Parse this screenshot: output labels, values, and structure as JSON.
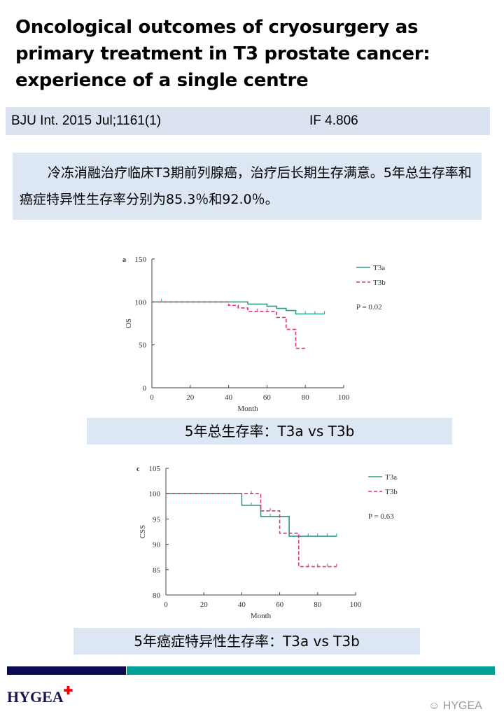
{
  "title": "Oncological outcomes of cryosurgery as primary treatment in T3 prostate cancer: experience of a single centre",
  "citation": {
    "journal": "BJU Int. 2015 Jul;1161(1)",
    "impact_factor": "IF 4.806"
  },
  "summary": "冷冻消融治疗临床T3期前列腺癌，治疗后长期生存满意。5年总生存率和癌症特异性生存率分别为85.3％和92.0％。",
  "captions": [
    "5年总生存率：T3a vs T3b",
    "5年癌症特异性生存率：T3a vs T3b"
  ],
  "colors": {
    "T3a": "#2a9d8a",
    "T3b": "#e0307a",
    "header_bar": "#dbe3f1",
    "footer_navy": "#0b0b4f",
    "footer_teal": "#00a096"
  },
  "chart_data": [
    {
      "type": "line",
      "panel_label": "a",
      "xlabel": "Month",
      "ylabel": "OS",
      "xlim": [
        0,
        100
      ],
      "ylim": [
        0,
        150
      ],
      "xticks": [
        0,
        20,
        40,
        60,
        80,
        100
      ],
      "yticks": [
        0,
        50,
        100,
        150
      ],
      "annotation": "P = 0.02",
      "legend_position": "top-right",
      "grid": false,
      "series": [
        {
          "name": "T3a",
          "style": "solid",
          "step_x": [
            0,
            50,
            60,
            65,
            70,
            75,
            90
          ],
          "step_y": [
            100,
            97.5,
            95,
            92.5,
            90,
            86,
            86
          ],
          "censored": [
            5,
            80,
            85,
            90
          ]
        },
        {
          "name": "T3b",
          "style": "dashed",
          "step_x": [
            0,
            40,
            45,
            50,
            65,
            70,
            75,
            80
          ],
          "step_y": [
            100,
            96,
            93,
            89,
            82,
            68,
            46,
            46
          ],
          "censored": [
            55,
            60
          ]
        }
      ]
    },
    {
      "type": "line",
      "panel_label": "c",
      "xlabel": "Month",
      "ylabel": "CSS",
      "xlim": [
        0,
        100
      ],
      "ylim": [
        80,
        105
      ],
      "xticks": [
        0,
        20,
        40,
        60,
        80,
        100
      ],
      "yticks": [
        80,
        85,
        90,
        95,
        100,
        105
      ],
      "annotation": "P = 0.63",
      "legend_position": "top-right",
      "grid": false,
      "series": [
        {
          "name": "T3a",
          "style": "solid",
          "step_x": [
            0,
            40,
            50,
            65,
            90
          ],
          "step_y": [
            100,
            97.7,
            95.5,
            91.6,
            91.6
          ],
          "censored": [
            45,
            55,
            75,
            80,
            85,
            90
          ]
        },
        {
          "name": "T3b",
          "style": "dashed",
          "step_x": [
            0,
            50,
            60,
            70,
            90
          ],
          "step_y": [
            100,
            96.6,
            92.2,
            85.6,
            85.6
          ],
          "censored": [
            45,
            55,
            75,
            80,
            85,
            90
          ]
        }
      ]
    }
  ],
  "footer": {
    "logo": "HYGEA",
    "watermark": "HYGEA"
  }
}
